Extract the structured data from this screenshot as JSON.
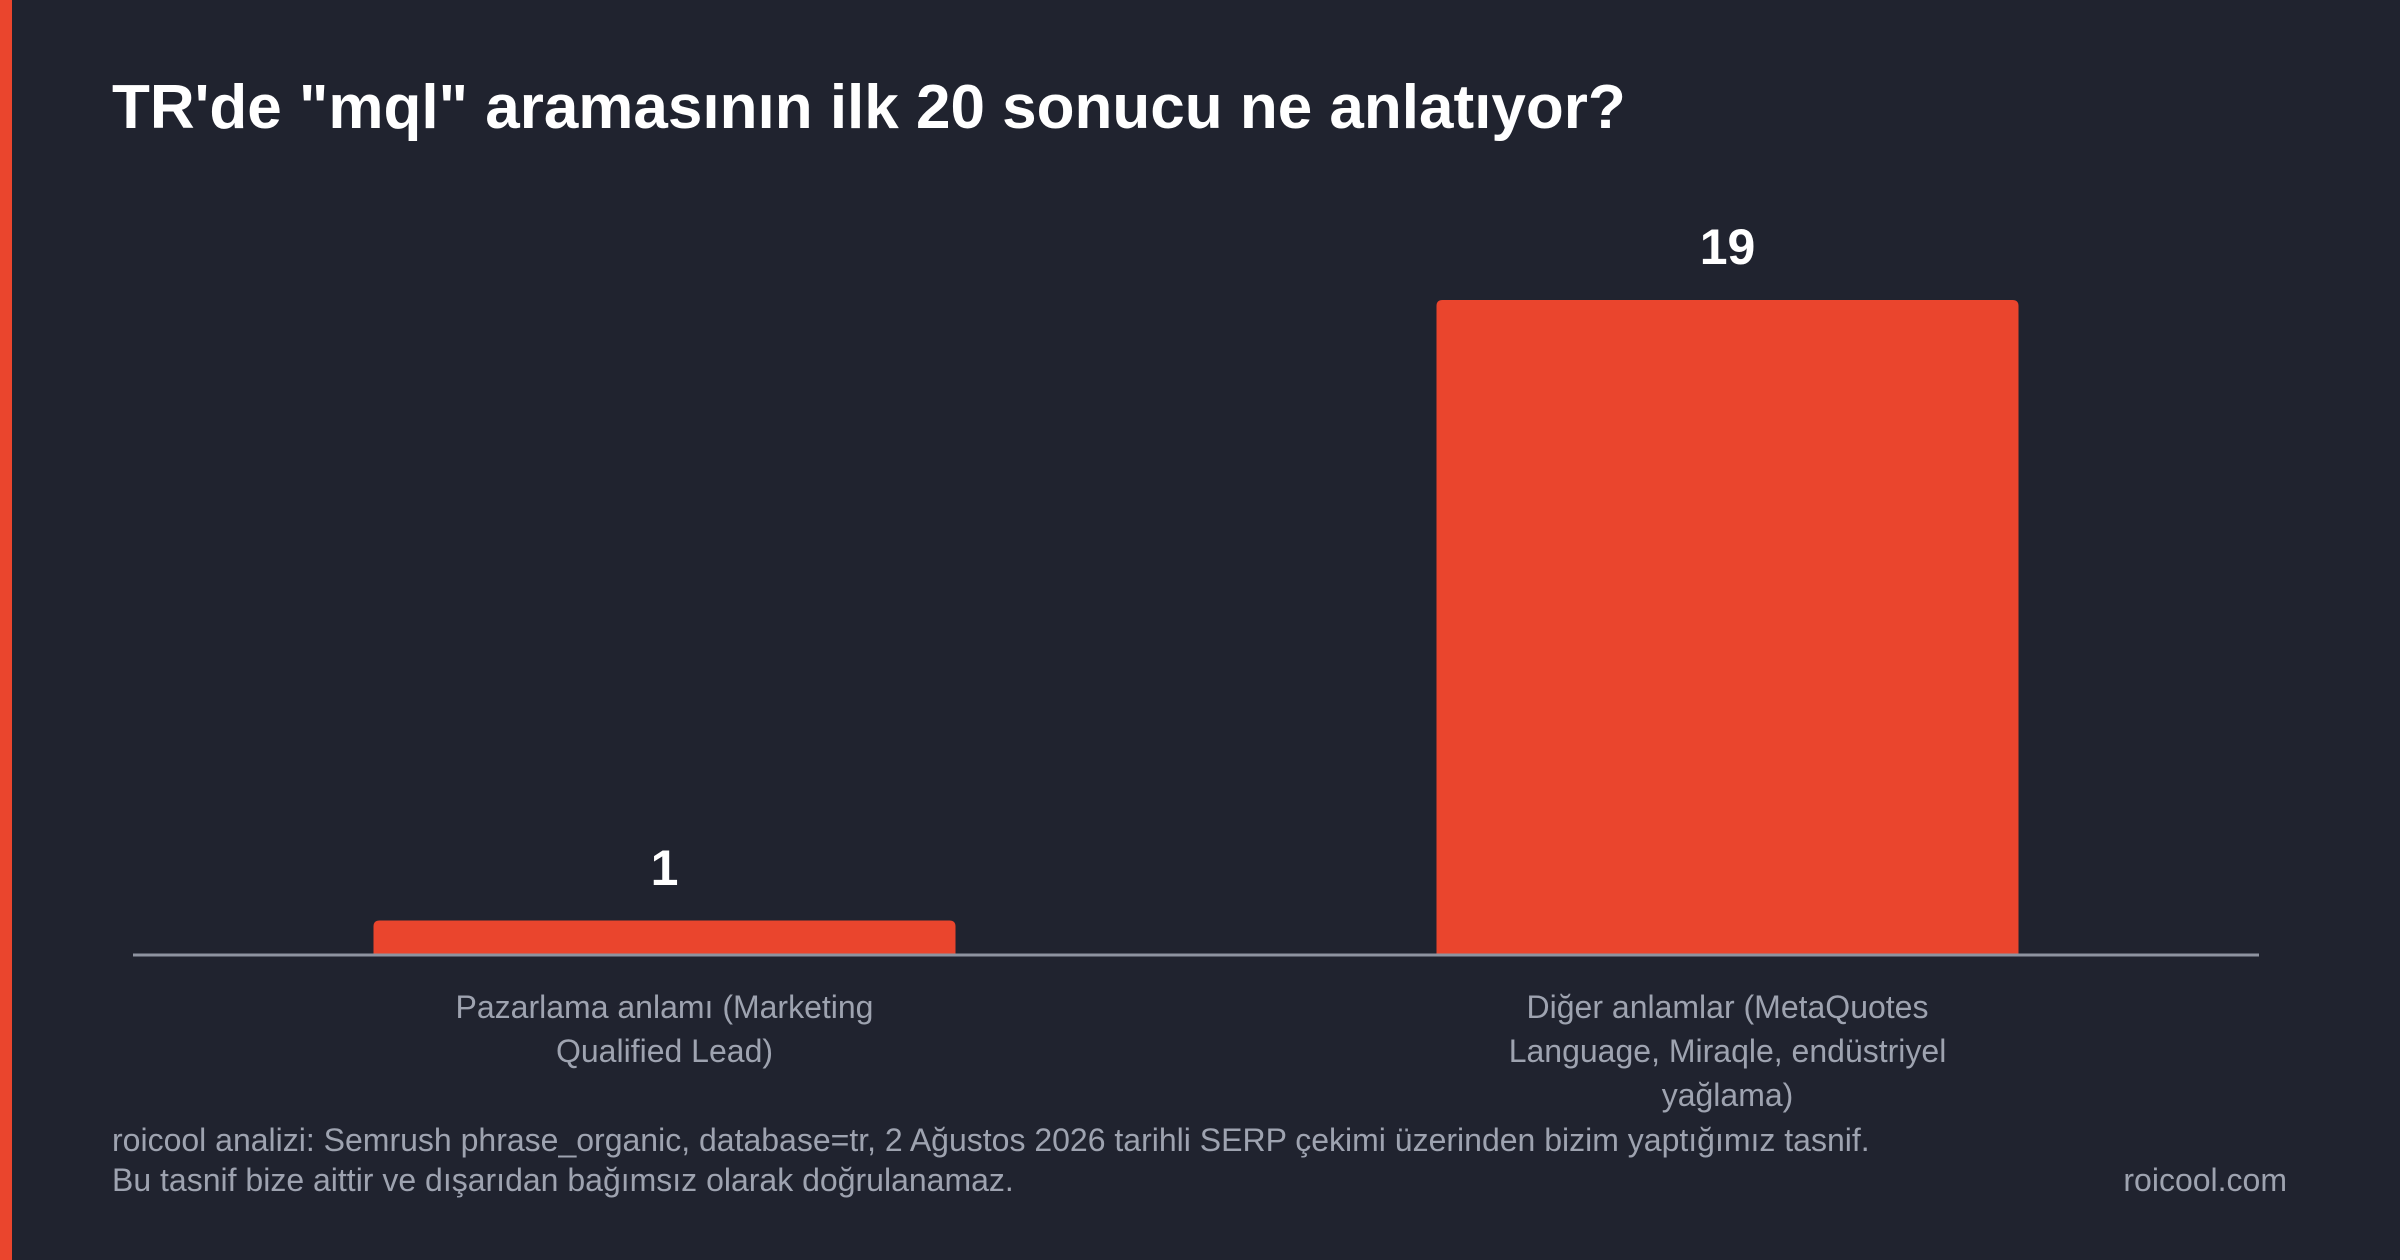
{
  "chart_data": {
    "type": "bar",
    "title": "TR'de \"mql\" aramasının ilk 20 sonucu ne anlatıyor?",
    "categories": [
      "Pazarlama anlamı (Marketing Qualified Lead)",
      "Diğer anlamlar (MetaQuotes Language, Miraqle, endüstriyel yağlama)"
    ],
    "values": [
      1,
      19
    ],
    "color": "#ea452d",
    "footnote": "roicool analizi: Semrush phrase_organic, database=tr, 2 Ağustos 2026 tarihli SERP çekimi üzerinden bizim yaptığımız tasnif. Bu tasnif bize aittir ve dışarıdan bağımsız olarak doğrulanamaz.",
    "source": "roicool.com"
  }
}
